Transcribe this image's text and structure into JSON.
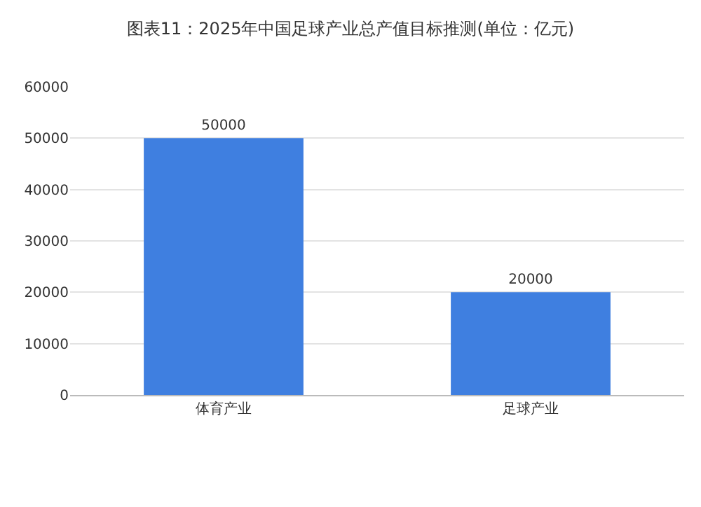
{
  "chart_data": {
    "type": "bar",
    "title": "图表11：2025年中国足球产业总产值目标推测(单位：亿元)",
    "categories": [
      "体育产业",
      "足球产业"
    ],
    "values": [
      50000,
      20000
    ],
    "color": "#3f7fe0",
    "ylim": [
      0,
      60000
    ],
    "yticks": [
      0,
      10000,
      20000,
      30000,
      40000,
      50000,
      60000
    ],
    "grid": "y",
    "data_labels": true
  }
}
